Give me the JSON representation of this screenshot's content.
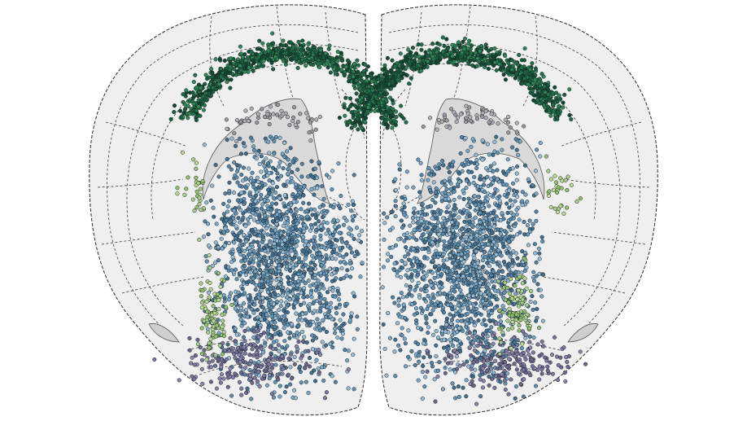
{
  "figure": {
    "type": "coronal brain section scatter",
    "background_color": "#ffffff",
    "section_fill": "#efefef",
    "outline_color": "#2a2a2a",
    "boundary_style": "dashed",
    "ventricle_fill": "#d9d9d9",
    "legend": "none",
    "axes": "none"
  },
  "palette": {
    "cortex_green": [
      "#0e4a34",
      "#17603f",
      "#1f744a",
      "#2c8a55"
    ],
    "light_green": [
      "#8fc46d",
      "#a6d08a",
      "#b8dc93"
    ],
    "striatum_blue": [
      "#3f6f93",
      "#4f83a8",
      "#5f95bb",
      "#77a9cc",
      "#93bedb"
    ],
    "purple": [
      "#6b6893",
      "#7b78a3",
      "#8a85b0"
    ],
    "grey_cell": [
      "#9a9aa3",
      "#b0b0b8"
    ]
  }
}
